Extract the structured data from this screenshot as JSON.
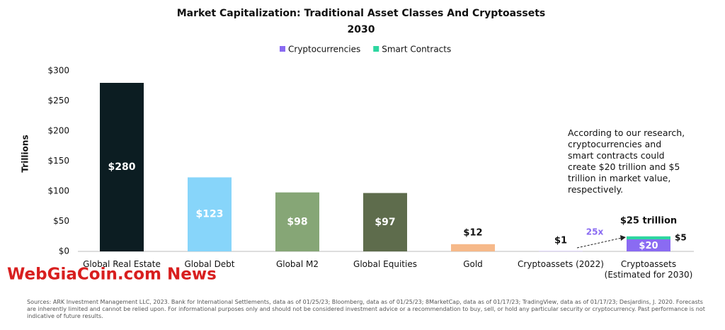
{
  "chart_data": {
    "type": "bar",
    "title": "Market Capitalization: Traditional Asset Classes And Cryptoassets",
    "subtitle": "2030",
    "y_label": "Trillions",
    "categories": [
      "Global Real Estate",
      "Global Debt",
      "Global M2",
      "Global Equities",
      "Gold",
      "Cryptoassets (2022)",
      "Cryptoassets (Estimated for 2030)"
    ],
    "values": [
      280,
      123,
      98,
      97,
      12,
      1,
      null
    ],
    "value_labels": [
      "$280",
      "$123",
      "$98",
      "$97",
      "$12",
      "$1",
      null
    ],
    "colors": [
      "#0c1d22",
      "#87d5fa",
      "#86a676",
      "#5e6c4c",
      "#f6b98a",
      "#d8cff5",
      null
    ],
    "series": [
      {
        "name": "Cryptocurrencies",
        "color": "#8a6bf2",
        "values": [
          null,
          null,
          null,
          null,
          null,
          null,
          20
        ],
        "value_labels": [
          null,
          null,
          null,
          null,
          null,
          null,
          "$20"
        ]
      },
      {
        "name": "Smart Contracts",
        "color": "#2dd6a0",
        "values": [
          null,
          null,
          null,
          null,
          null,
          null,
          5
        ],
        "value_labels": [
          null,
          null,
          null,
          null,
          null,
          null,
          "$5"
        ]
      }
    ],
    "total_label": "$25 trillion",
    "growth_label": "25x",
    "annotation": "According to our research, cryptocurrencies and smart contracts could create $20 trillion and $5 trillion in market value, respectively.",
    "ylim": [
      0,
      300
    ],
    "yticks": [
      {
        "value": 0,
        "label": "$0"
      },
      {
        "value": 50,
        "label": "$50"
      },
      {
        "value": 100,
        "label": "$100"
      },
      {
        "value": 150,
        "label": "$150"
      },
      {
        "value": 200,
        "label": "$200"
      },
      {
        "value": 250,
        "label": "$250"
      },
      {
        "value": 300,
        "label": "$300"
      }
    ]
  },
  "watermark": "WebGiaCoin.com News",
  "source": "Sources: ARK Investment Management LLC, 2023. Bank for International Settlements, data as of 01/25/23; Bloomberg, data as of 01/25/23; 8MarketCap, data as of 01/17/23; TradingView, data as of 01/17/23; Desjardins, J. 2020. Forecasts are inherently limited and cannot be relied upon. For informational purposes only and should not be considered investment advice or a recommendation to buy, sell, or hold any particular security or cryptocurrency. Past performance is not indicative of future results."
}
